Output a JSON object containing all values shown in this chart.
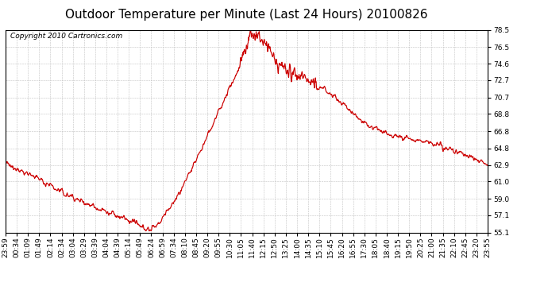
{
  "title": "Outdoor Temperature per Minute (Last 24 Hours) 20100826",
  "copyright_text": "Copyright 2010 Cartronics.com",
  "line_color": "#cc0000",
  "background_color": "#ffffff",
  "grid_color": "#bbbbbb",
  "ylim": [
    55.1,
    78.5
  ],
  "yticks": [
    55.1,
    57.1,
    59.0,
    61.0,
    62.9,
    64.8,
    66.8,
    68.8,
    70.7,
    72.7,
    74.6,
    76.5,
    78.5
  ],
  "xtick_labels": [
    "23:59",
    "00:34",
    "01:09",
    "01:49",
    "02:14",
    "02:34",
    "03:04",
    "03:29",
    "03:39",
    "04:04",
    "04:39",
    "05:14",
    "05:49",
    "06:24",
    "06:59",
    "07:34",
    "08:10",
    "08:45",
    "09:20",
    "09:55",
    "10:30",
    "11:05",
    "11:40",
    "12:15",
    "12:50",
    "13:25",
    "14:00",
    "14:35",
    "15:10",
    "15:45",
    "16:20",
    "16:55",
    "17:30",
    "18:05",
    "18:40",
    "19:15",
    "19:50",
    "20:25",
    "21:00",
    "21:35",
    "22:10",
    "22:45",
    "23:20",
    "23:55"
  ],
  "title_fontsize": 11,
  "tick_fontsize": 6.5,
  "copyright_fontsize": 6.5,
  "curve_nodes_t": [
    0.0,
    1.5,
    3.0,
    5.0,
    6.5,
    7.0,
    7.5,
    8.5,
    9.5,
    10.5,
    11.5,
    12.25,
    12.5,
    13.0,
    13.5,
    14.0,
    14.5,
    15.0,
    15.5,
    16.0,
    17.0,
    18.0,
    19.0,
    20.0,
    21.0,
    22.0,
    23.0,
    24.0
  ],
  "curve_nodes_v": [
    63.0,
    61.5,
    59.5,
    57.5,
    56.2,
    55.4,
    55.8,
    59.0,
    63.5,
    68.5,
    73.5,
    78.2,
    77.8,
    76.8,
    74.5,
    73.8,
    73.2,
    72.8,
    72.0,
    71.5,
    69.5,
    67.5,
    66.5,
    66.0,
    65.5,
    64.8,
    64.0,
    62.9
  ]
}
